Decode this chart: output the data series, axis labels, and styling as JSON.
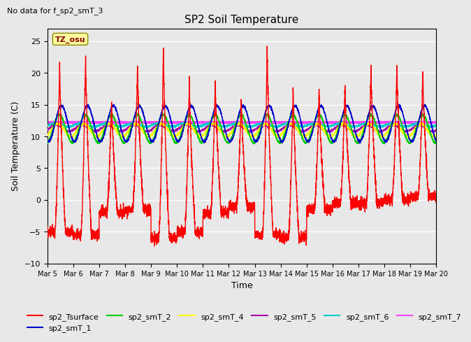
{
  "title": "SP2 Soil Temperature",
  "subtitle": "No data for f_sp2_smT_3",
  "xlabel": "Time",
  "ylabel": "Soil Temperature (C)",
  "ylim": [
    -10,
    27
  ],
  "yticks": [
    -10,
    -5,
    0,
    5,
    10,
    15,
    20,
    25
  ],
  "annotation_text": "TZ_osu",
  "legend_entries": [
    {
      "label": "sp2_Tsurface",
      "color": "#ff0000"
    },
    {
      "label": "sp2_smT_1",
      "color": "#0000cc"
    },
    {
      "label": "sp2_smT_2",
      "color": "#00cc00"
    },
    {
      "label": "sp2_smT_4",
      "color": "#ffff00"
    },
    {
      "label": "sp2_smT_5",
      "color": "#aa00aa"
    },
    {
      "label": "sp2_smT_6",
      "color": "#00cccc"
    },
    {
      "label": "sp2_smT_7",
      "color": "#ff44ff"
    }
  ],
  "bg_color": "#e8e8e8",
  "plot_bg_color": "#e8e8e8",
  "grid_color": "#ffffff",
  "tsurface_color": "#ff0000",
  "smt1_color": "#0000cc",
  "smt2_color": "#00cc00",
  "smt4_color": "#ffff00",
  "smt5_color": "#aa00aa",
  "smt6_color": "#00cccc",
  "smt7_color": "#ff44ff",
  "smt7_flat": 12.2
}
